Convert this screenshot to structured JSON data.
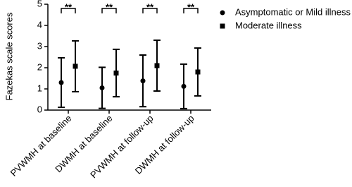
{
  "chart_data": {
    "type": "errorbar",
    "y_label": "Fazekas scale scores",
    "categories": [
      "PVWMH at baseline",
      "DWMH at baseline",
      "PVWMH at follow-up",
      "DWMH at follow-up"
    ],
    "series": [
      {
        "name": "Asymptomatic or Mild illness",
        "marker": "circle",
        "color": "#000000",
        "values": [
          1.3,
          1.05,
          1.38,
          1.12
        ],
        "error": [
          1.17,
          0.97,
          1.22,
          1.05
        ]
      },
      {
        "name": "Moderate illness",
        "marker": "square",
        "color": "#000000",
        "values": [
          2.07,
          1.75,
          2.1,
          1.8
        ],
        "error": [
          1.2,
          1.12,
          1.2,
          1.13
        ]
      }
    ],
    "annotations": [
      "**",
      "**",
      "**",
      "**"
    ],
    "ylim": [
      0,
      5
    ],
    "yticks": [
      0,
      1,
      2,
      3,
      4,
      5
    ],
    "grid": false
  }
}
